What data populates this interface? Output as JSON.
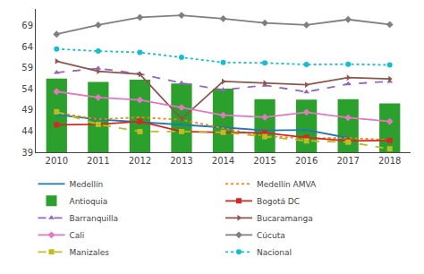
{
  "chart_data": {
    "type": "line",
    "x": [
      2010,
      2011,
      2012,
      2013,
      2014,
      2015,
      2016,
      2017,
      2018
    ],
    "series": [
      {
        "name": "Medellín",
        "values": [
          47.9,
          46.8,
          null,
          null,
          44.9,
          44.2,
          44.3,
          42.4,
          null
        ],
        "line_style": "solid",
        "marker": "none"
      },
      {
        "name": "Medellín AMVA",
        "values": [
          48.4,
          46.8,
          47.3,
          46.7,
          44.7,
          42.8,
          42.3,
          42.4,
          41.9
        ],
        "line_style": "dot",
        "marker": "none"
      },
      {
        "name": "Antioquia",
        "type": "bar",
        "values": [
          56.5,
          55.7,
          56.2,
          55.3,
          54.1,
          51.6,
          51.5,
          51.6,
          50.6
        ]
      },
      {
        "name": "Bogotá DC",
        "values": [
          45.5,
          45.6,
          46.3,
          43.9,
          43.7,
          43.6,
          42.5,
          41.7,
          41.8
        ],
        "line_style": "solid",
        "marker": "square"
      },
      {
        "name": "Barranquilla",
        "values": [
          57.9,
          58.9,
          57.6,
          55.4,
          53.8,
          54.9,
          53.3,
          55.2,
          55.8
        ],
        "line_style": "dash",
        "marker": "triangle-up"
      },
      {
        "name": "Bucaramanga",
        "values": [
          60.6,
          58.2,
          57.5,
          46.9,
          55.8,
          55.4,
          55.0,
          56.7,
          56.4
        ],
        "line_style": "solid",
        "marker": "triangle-right"
      },
      {
        "name": "Cali",
        "values": [
          53.4,
          52.0,
          51.4,
          49.6,
          47.8,
          47.3,
          48.5,
          47.2,
          46.3
        ],
        "line_style": "solid",
        "marker": "diamond"
      },
      {
        "name": "Cúcuta",
        "values": [
          67.0,
          69.2,
          71.0,
          71.5,
          70.7,
          69.7,
          69.2,
          70.5,
          69.3
        ],
        "line_style": "solid",
        "marker": "diamond"
      },
      {
        "name": "Manizales",
        "values": [
          48.6,
          45.6,
          43.9,
          43.9,
          43.7,
          42.7,
          41.7,
          41.4,
          39.8
        ],
        "line_style": "dash",
        "marker": "square"
      },
      {
        "name": "Nacional",
        "values": [
          63.5,
          63.0,
          62.7,
          61.5,
          60.3,
          60.2,
          59.8,
          59.9,
          59.7
        ],
        "line_style": "dot",
        "marker": "circle"
      }
    ],
    "xlim": [
      2009.5,
      2018.5
    ],
    "xticks": [
      2010,
      2011,
      2012,
      2013,
      2014,
      2015,
      2016,
      2017,
      2018
    ],
    "ylim": [
      39,
      73
    ],
    "yticks": [
      39,
      44,
      49,
      54,
      59,
      64,
      69
    ],
    "grid": false,
    "legend": "bottom"
  }
}
